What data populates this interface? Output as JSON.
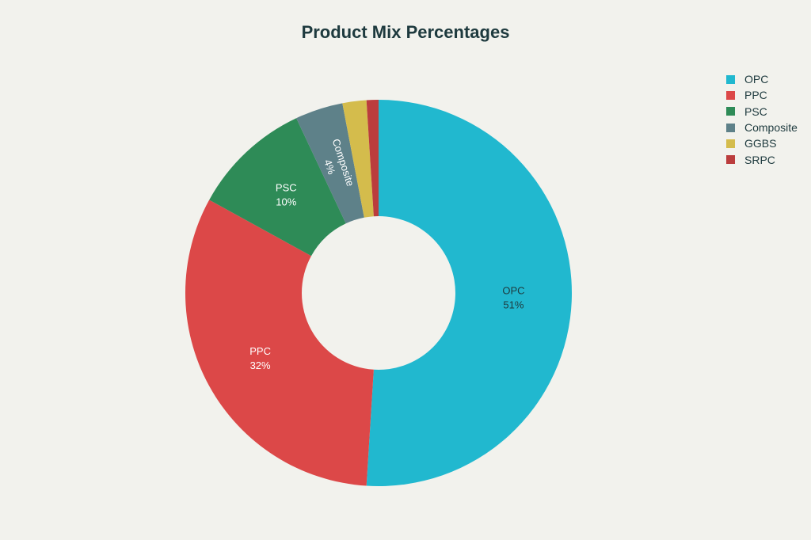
{
  "chart_data": {
    "type": "pie",
    "title": "Product Mix Percentages",
    "donut": true,
    "legend_position": "top-right",
    "slices": [
      {
        "label": "OPC",
        "value": 51,
        "value_label": "51%",
        "color": "#21b8cf",
        "label_color": "#1e3a3e",
        "show_label": true
      },
      {
        "label": "PPC",
        "value": 32,
        "value_label": "32%",
        "color": "#dc4848",
        "label_color": "#ffffff",
        "show_label": true
      },
      {
        "label": "PSC",
        "value": 10,
        "value_label": "10%",
        "color": "#2e8b57",
        "label_color": "#ffffff",
        "show_label": true
      },
      {
        "label": "Composite",
        "value": 4,
        "value_label": "4%",
        "color": "#5e8189",
        "label_color": "#ffffff",
        "show_label": true,
        "rotate": true
      },
      {
        "label": "GGBS",
        "value": 2,
        "value_label": "2%",
        "color": "#d4bc4c",
        "label_color": "#ffffff",
        "show_label": false
      },
      {
        "label": "SRPC",
        "value": 1,
        "value_label": "1%",
        "color": "#bb3d3d",
        "label_color": "#ffffff",
        "show_label": false
      }
    ]
  }
}
